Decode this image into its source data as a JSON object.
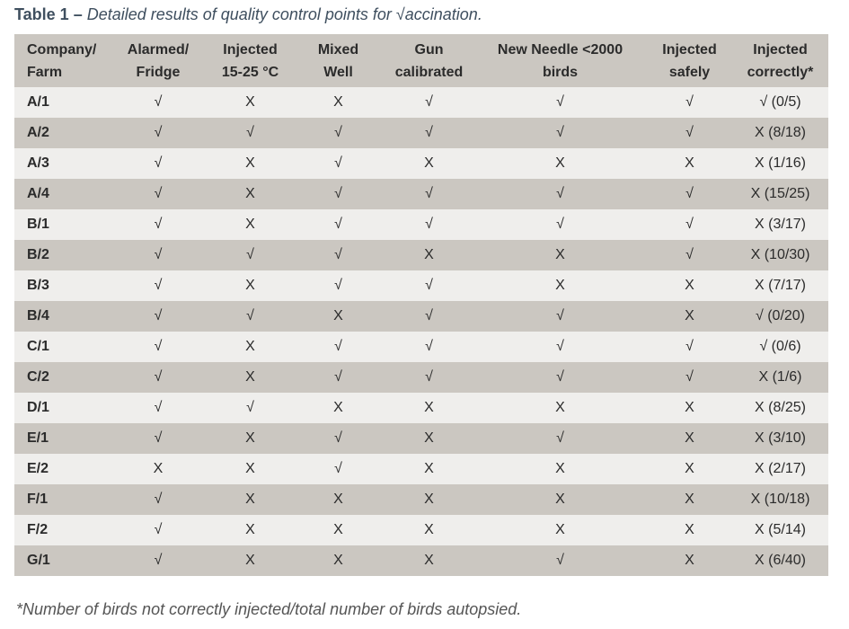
{
  "title": {
    "label": "Table 1 –",
    "text": "Detailed results of quality control points for √accination."
  },
  "table": {
    "header": [
      "Company/\nFarm",
      "Alarmed/\nFridge",
      "Injected\n15-25 °C",
      "Mixed\nWell",
      "Gun\ncalibrated",
      "New Needle <2000\nbirds",
      "Injected\nsafely",
      "Injected\ncorrectly*"
    ],
    "rows": [
      [
        "A/1",
        "√",
        "X",
        "X",
        "√",
        "√",
        "√",
        "√ (0/5)"
      ],
      [
        "A/2",
        "√",
        "√",
        "√",
        "√",
        "√",
        "√",
        "X (8/18)"
      ],
      [
        "A/3",
        "√",
        "X",
        "√",
        "X",
        "X",
        "X",
        "X (1/16)"
      ],
      [
        "A/4",
        "√",
        "X",
        "√",
        "√",
        "√",
        "√",
        "X (15/25)"
      ],
      [
        "B/1",
        "√",
        "X",
        "√",
        "√",
        "√",
        "√",
        "X (3/17)"
      ],
      [
        "B/2",
        "√",
        "√",
        "√",
        "X",
        "X",
        "√",
        "X (10/30)"
      ],
      [
        "B/3",
        "√",
        "X",
        "√",
        "√",
        "X",
        "X",
        "X (7/17)"
      ],
      [
        "B/4",
        "√",
        "√",
        "X",
        "√",
        "√",
        "X",
        "√ (0/20)"
      ],
      [
        "C/1",
        "√",
        "X",
        "√",
        "√",
        "√",
        "√",
        "√ (0/6)"
      ],
      [
        "C/2",
        "√",
        "X",
        "√",
        "√",
        "√",
        "√",
        "X (1/6)"
      ],
      [
        "D/1",
        "√",
        "√",
        "X",
        "X",
        "X",
        "X",
        "X (8/25)"
      ],
      [
        "E/1",
        "√",
        "X",
        "√",
        "X",
        "√",
        "X",
        "X (3/10)"
      ],
      [
        "E/2",
        "X",
        "X",
        "√",
        "X",
        "X",
        "X",
        "X (2/17)"
      ],
      [
        "F/1",
        "√",
        "X",
        "X",
        "X",
        "X",
        "X",
        "X (10/18)"
      ],
      [
        "F/2",
        "√",
        "X",
        "X",
        "X",
        "X",
        "X",
        "X (5/14)"
      ],
      [
        "G/1",
        "√",
        "X",
        "X",
        "X",
        "√",
        "X",
        "X (6/40)"
      ]
    ]
  },
  "footnote": "*Number of birds not correctly injected/total number of birds autopsied."
}
